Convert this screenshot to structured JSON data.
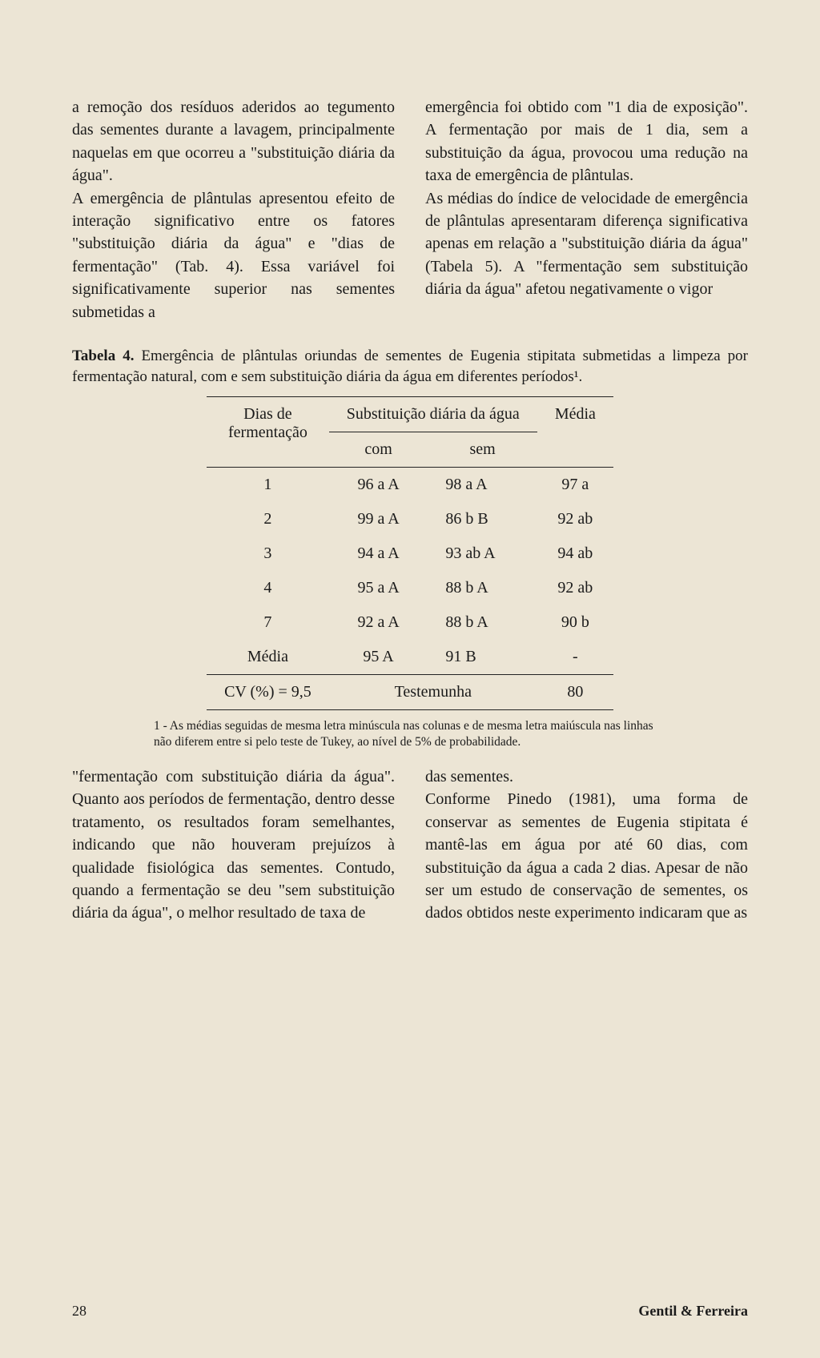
{
  "upper_text": {
    "left": "a remoção dos resíduos aderidos ao tegumento das sementes durante a lavagem, principalmente naquelas em que ocorreu a \"substituição diária da água\".\n    A emergência de plântulas apresentou efeito de interação significativo entre os fatores \"substituição diária da água\" e \"dias de fermentação\" (Tab. 4). Essa variável foi significativamente superior nas sementes submetidas a",
    "right": "emergência foi obtido com \"1 dia de exposição\". A fermentação por mais de 1 dia, sem a substituição da água, provocou uma redução na taxa de emergência de plântulas.\n    As médias do índice de velocidade de emergência de plântulas apresentaram diferença significativa apenas em relação a \"substituição diária da água\" (Tabela 5). A \"fermentação sem substituição diária da água\" afetou negativamente o vigor"
  },
  "table_caption": {
    "label": "Tabela 4.",
    "text": "Emergência de plântulas oriundas de sementes de Eugenia stipitata submetidas a limpeza por fermentação natural, com e sem substituição diária da água em diferentes períodos¹."
  },
  "table": {
    "header": {
      "dias": "Dias de\nfermentação",
      "subst": "Substituição diária da água",
      "media": "Média",
      "com": "com",
      "sem": "sem"
    },
    "rows": [
      {
        "dias": "1",
        "com": "96 a A",
        "sem": "98 a  A",
        "media": "97 a"
      },
      {
        "dias": "2",
        "com": "99 a A",
        "sem": "86 b  B",
        "media": "92 ab"
      },
      {
        "dias": "3",
        "com": "94 a A",
        "sem": "93 ab A",
        "media": "94 ab"
      },
      {
        "dias": "4",
        "com": "95 a A",
        "sem": "88 b  A",
        "media": "92 ab"
      },
      {
        "dias": "7",
        "com": "92 a A",
        "sem": "88 b  A",
        "media": "90 b"
      },
      {
        "dias": "Média",
        "com": "95   A",
        "sem": "91    B",
        "media": "-"
      }
    ],
    "footer_row": {
      "cv": "CV (%) = 9,5",
      "test": "Testemunha",
      "val": "80"
    }
  },
  "footnote": "1 - As médias seguidas de mesma letra minúscula nas colunas e de mesma letra maiúscula nas linhas não diferem entre si pelo teste de Tukey, ao nível de 5% de probabilidade.",
  "lower_text": {
    "left": "\"fermentação com substituição diária da água\". Quanto aos períodos de fermentação, dentro desse tratamento, os resultados foram semelhantes, indicando que não houveram prejuízos à qualidade fisiológica das sementes. Contudo, quando a fermentação se deu \"sem substituição diária da água\", o melhor resultado de taxa de",
    "right": "das sementes.\n    Conforme Pinedo (1981), uma forma de conservar as sementes de Eugenia stipitata é mantê-las em água por até 60 dias, com substituição da água a cada 2 dias. Apesar de não ser um estudo de conservação de sementes, os dados obtidos neste experimento indicaram que as"
  },
  "page_number": "28",
  "authors": "Gentil & Ferreira"
}
